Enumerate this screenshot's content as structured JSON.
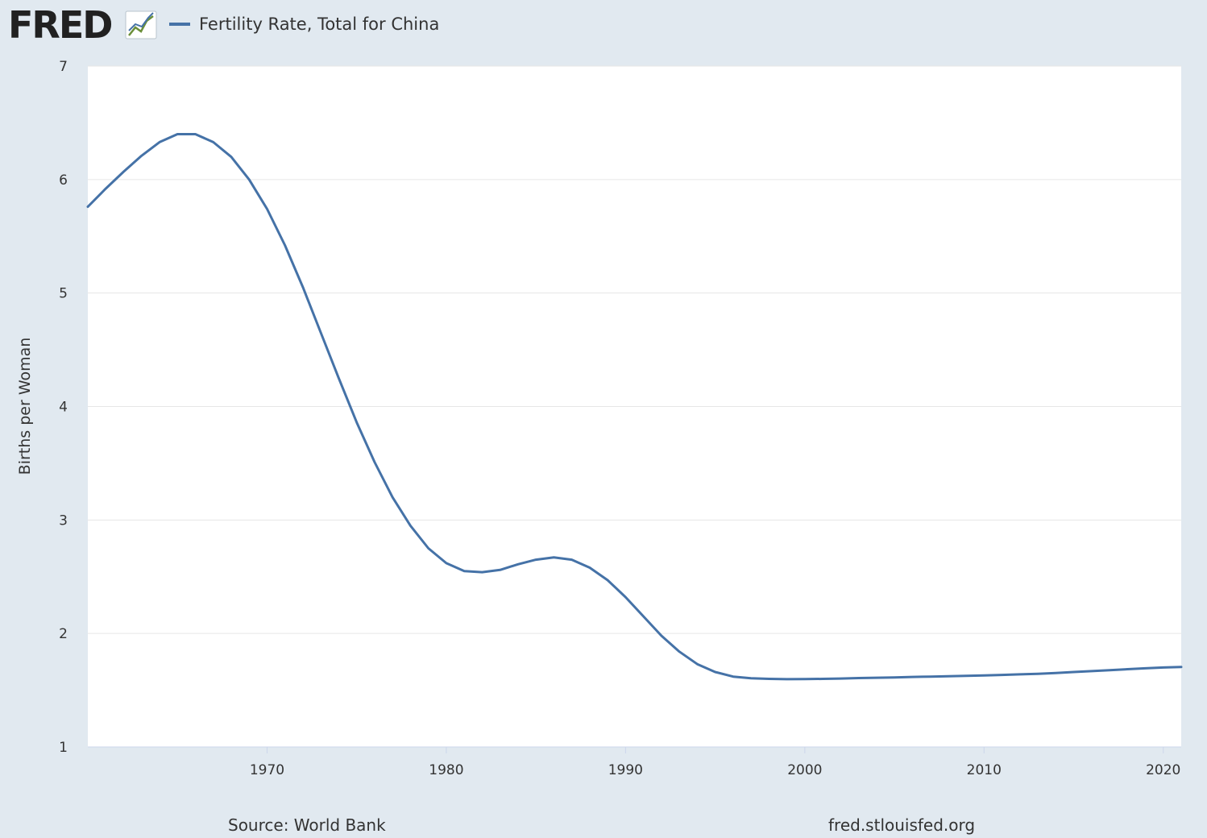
{
  "header": {
    "logo_text": "FRED",
    "legend_label": "Fertility Rate, Total for China"
  },
  "footer": {
    "source": "Source: World Bank",
    "site": "fred.stlouisfed.org"
  },
  "colors": {
    "background": "#e1e9f0",
    "plot_bg": "#ffffff",
    "series": "#4572a7",
    "grid": "#e6e6e6",
    "logo_dark": "#212121"
  },
  "chart_data": {
    "type": "line",
    "title": "Fertility Rate, Total for China",
    "xlabel": "",
    "ylabel": "Births per Woman",
    "xlim": [
      1960,
      2021
    ],
    "ylim": [
      1,
      7
    ],
    "x_ticks": [
      1970,
      1980,
      1990,
      2000,
      2010,
      2020
    ],
    "y_ticks": [
      1,
      2,
      3,
      4,
      5,
      6,
      7
    ],
    "grid": true,
    "legend": "top-left",
    "series": [
      {
        "name": "Fertility Rate, Total for China",
        "x": [
          1960,
          1961,
          1962,
          1963,
          1964,
          1965,
          1966,
          1967,
          1968,
          1969,
          1970,
          1971,
          1972,
          1973,
          1974,
          1975,
          1976,
          1977,
          1978,
          1979,
          1980,
          1981,
          1982,
          1983,
          1984,
          1985,
          1986,
          1987,
          1988,
          1989,
          1990,
          1991,
          1992,
          1993,
          1994,
          1995,
          1996,
          1997,
          1998,
          1999,
          2000,
          2001,
          2002,
          2003,
          2004,
          2005,
          2006,
          2007,
          2008,
          2009,
          2010,
          2011,
          2012,
          2013,
          2014,
          2015,
          2016,
          2017,
          2018,
          2019,
          2020,
          2021
        ],
        "values": [
          5.76,
          5.92,
          6.07,
          6.21,
          6.33,
          6.4,
          6.4,
          6.33,
          6.2,
          6.0,
          5.74,
          5.42,
          5.05,
          4.65,
          4.25,
          3.86,
          3.51,
          3.2,
          2.95,
          2.75,
          2.62,
          2.55,
          2.54,
          2.56,
          2.61,
          2.65,
          2.67,
          2.65,
          2.58,
          2.47,
          2.32,
          2.15,
          1.98,
          1.84,
          1.73,
          1.66,
          1.62,
          1.605,
          1.6,
          1.597,
          1.598,
          1.6,
          1.603,
          1.607,
          1.61,
          1.613,
          1.617,
          1.62,
          1.623,
          1.627,
          1.63,
          1.635,
          1.64,
          1.645,
          1.652,
          1.66,
          1.668,
          1.677,
          1.685,
          1.693,
          1.7,
          1.705
        ]
      }
    ]
  }
}
